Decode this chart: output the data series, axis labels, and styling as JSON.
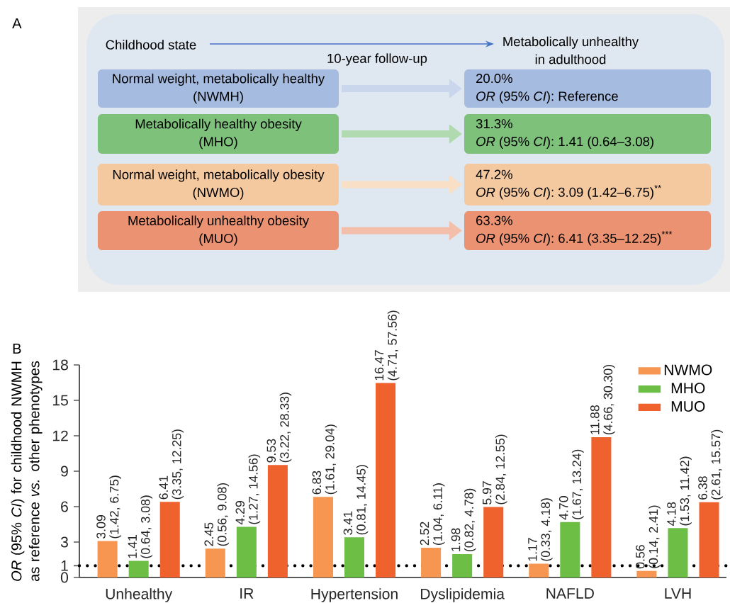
{
  "chart_data": [
    {
      "type": "other",
      "title": "A",
      "colors": [
        "#a6bbe0",
        "#7dc17b",
        "#f5c9a0",
        "#eb9272"
      ],
      "annotations": [
        "Childhood state",
        "10-year follow-up",
        "Metabolically unhealthy",
        "in adulthood",
        "Normal weight, metabolically healthy",
        "(NWMH)",
        "20.0%",
        "*OR* (95% *CI*): Reference",
        "Metabolically healthy obesity",
        "(MHO)",
        "31.3%",
        "*OR* (95% *CI*): 1.41 (0.64–3.08)",
        "Normal weight, metabolically obesity",
        "(NWMO)",
        "47.2%",
        "*OR* (95% *CI*): 3.09 (1.42–6.75)$^{**}$",
        "Metabolically unhealthy obesity",
        "(MUO)",
        "63.3%",
        "*OR* (95% *CI*): 6.41 (3.35–12.25)$^{***}$"
      ]
    },
    {
      "type": "bar",
      "title": "B",
      "ylabel": "*OR* (95% *CI*) for childhood NWMH as reference *vs.* other phenotypes",
      "categories": [
        "Unhealthy",
        "IR",
        "Hypertension",
        "Dyslipidemia",
        "NAFLD",
        "LVH"
      ],
      "series": [
        {
          "name": "NWMO",
          "color": "#f69650",
          "values": [
            3.09,
            2.45,
            6.83,
            2.52,
            1.17,
            0.56
          ],
          "value_labels": [
            "3.09",
            "2.45",
            "6.83",
            "2.52",
            "1.17",
            "0.56"
          ]
        },
        {
          "name": "MHO",
          "color": "#6cbe45",
          "values": [
            1.41,
            4.29,
            3.41,
            1.98,
            4.7,
            4.18
          ],
          "value_labels": [
            "1.41",
            "4.29",
            "3.41",
            "1.98",
            "4.70",
            "4.18"
          ]
        },
        {
          "name": "MUO",
          "color": "#f0622d",
          "values": [
            6.41,
            9.53,
            16.47,
            5.97,
            11.88,
            6.38
          ],
          "value_labels": [
            "6.41",
            "9.53",
            "16.47",
            "5.97",
            "11.88",
            "6.38"
          ]
        }
      ],
      "annotations": [
        "(1.42, 6.75)",
        "(0.64, 3.08)",
        "(3.35, 12.25)",
        "(0.56, 9.08)",
        "(1.27, 14.56)",
        "(3.22, 28.33)",
        "(1.61, 29.04)",
        "(0.81, 14.45)",
        "(4.71, 57.56)",
        "(1.04, 6.11)",
        "(0.82, 4.78)",
        "(2.84, 12.55)",
        "(0.33, 4.18)",
        "(1.67, 13.24)",
        "(4.66, 30.30)",
        "(0.14, 2.41)",
        "(1.53, 11.42)",
        "(2.61, 15.57)"
      ],
      "ylim": [
        0,
        18
      ],
      "yticks": [
        0,
        1,
        3,
        6,
        9,
        12,
        15,
        18
      ],
      "ref_lines": [
        {
          "axis": "y",
          "value": 1,
          "color": "#000000",
          "line_style": "dotted"
        }
      ],
      "legend": "top right",
      "grid": false
    }
  ]
}
